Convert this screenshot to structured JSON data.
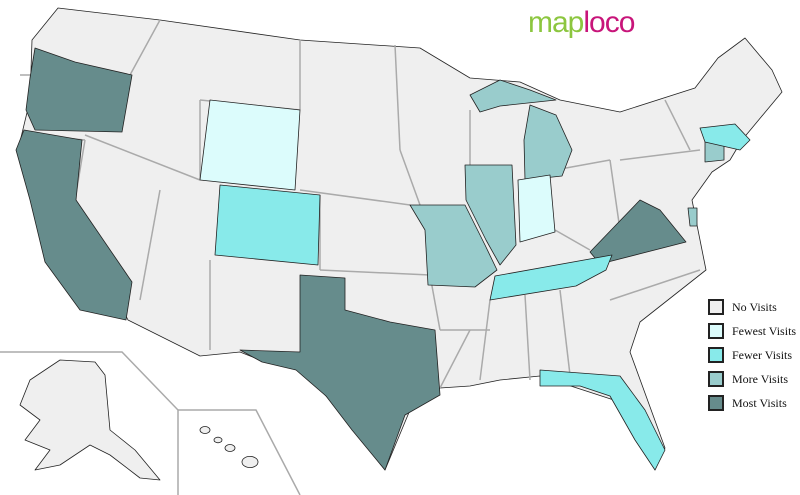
{
  "logo": {
    "part1": "map",
    "part2": "loco"
  },
  "legend": [
    {
      "label": "No Visits",
      "color": "#efefef"
    },
    {
      "label": "Fewest Visits",
      "color": "#dcfcfc"
    },
    {
      "label": "Fewer Visits",
      "color": "#88eaea"
    },
    {
      "label": "More Visits",
      "color": "#99cccc"
    },
    {
      "label": "Most Visits",
      "color": "#668c8c"
    }
  ],
  "states": [
    {
      "state": "Oregon",
      "level": 4
    },
    {
      "state": "California",
      "level": 4
    },
    {
      "state": "Texas",
      "level": 4
    },
    {
      "state": "Virginia",
      "level": 4
    },
    {
      "state": "Missouri",
      "level": 3
    },
    {
      "state": "Illinois",
      "level": 3
    },
    {
      "state": "Michigan",
      "level": 3
    },
    {
      "state": "Connecticut",
      "level": 3
    },
    {
      "state": "Delaware",
      "level": 3
    },
    {
      "state": "Colorado",
      "level": 2
    },
    {
      "state": "Tennessee",
      "level": 2
    },
    {
      "state": "Florida",
      "level": 2
    },
    {
      "state": "Massachusetts",
      "level": 2
    },
    {
      "state": "Wyoming",
      "level": 1
    },
    {
      "state": "Indiana",
      "level": 1
    }
  ]
}
